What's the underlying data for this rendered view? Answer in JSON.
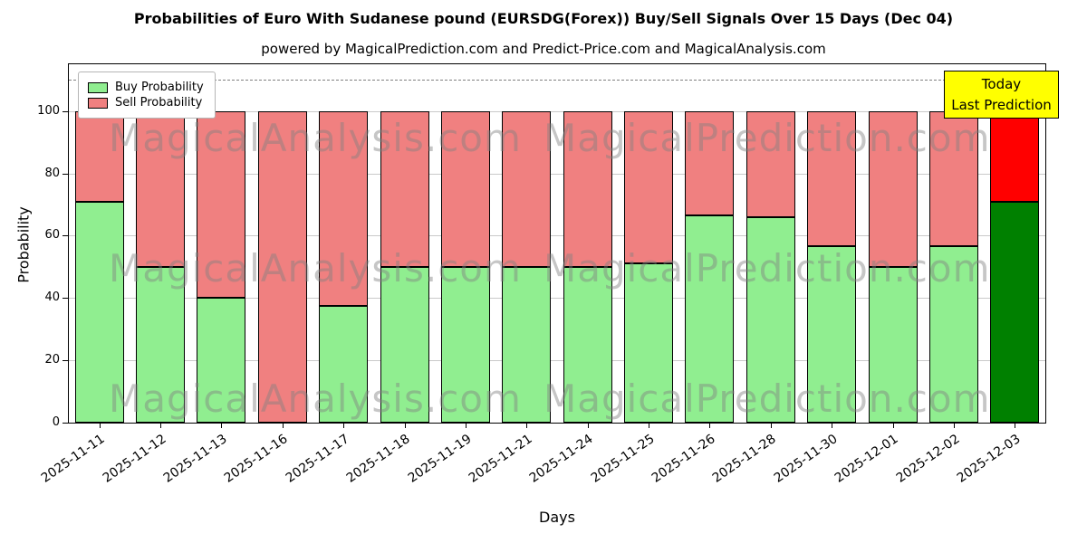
{
  "title": "Probabilities of Euro With Sudanese pound (EURSDG(Forex)) Buy/Sell Signals Over 15 Days (Dec 04)",
  "subtitle": "powered by MagicalPrediction.com and Predict-Price.com and MagicalAnalysis.com",
  "legend": [
    {
      "label": "Buy Probability",
      "color": "#90ee90"
    },
    {
      "label": "Sell Probability",
      "color": "#f08080"
    }
  ],
  "annotation": {
    "line1": "Today",
    "line2": "Last Prediction",
    "bg_color": "#ffff00"
  },
  "watermarks": [
    "MagicalAnalysis.com",
    "MagicalPrediction.com"
  ],
  "chart_data": {
    "type": "bar",
    "stacked": true,
    "title": "Probabilities of Euro With Sudanese pound (EURSDG(Forex)) Buy/Sell Signals Over 15 Days (Dec 04)",
    "xlabel": "Days",
    "ylabel": "Probability",
    "ylim": [
      0,
      115
    ],
    "yticks": [
      0,
      20,
      40,
      60,
      80,
      100
    ],
    "grid": true,
    "dashed_line_y": 110,
    "categories": [
      "2025-11-11",
      "2025-11-12",
      "2025-11-13",
      "2025-11-16",
      "2025-11-17",
      "2025-11-18",
      "2025-11-19",
      "2025-11-21",
      "2025-11-24",
      "2025-11-25",
      "2025-11-26",
      "2025-11-28",
      "2025-11-30",
      "2025-12-01",
      "2025-12-02",
      "2025-12-03"
    ],
    "series": [
      {
        "name": "Buy Probability",
        "color": "#90ee90",
        "values": [
          71,
          50,
          40,
          0,
          37.5,
          50,
          50,
          50,
          50,
          51,
          66.5,
          66,
          56.5,
          50,
          56.5,
          71
        ]
      },
      {
        "name": "Sell Probability",
        "color": "#f08080",
        "values": [
          29,
          50,
          60,
          100,
          62.5,
          50,
          50,
          50,
          50,
          49,
          33.5,
          34,
          43.5,
          50,
          43.5,
          29
        ]
      }
    ],
    "today_index": 15,
    "today_colors": {
      "buy": "#008000",
      "sell": "#ff0000"
    }
  }
}
